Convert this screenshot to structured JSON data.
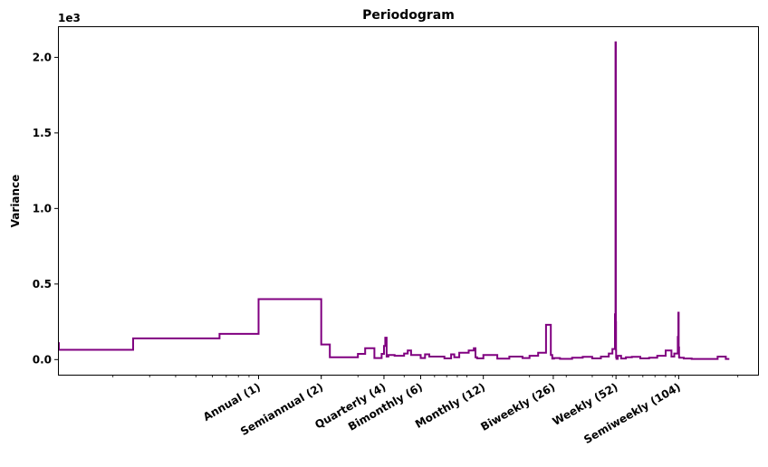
{
  "chart_data": {
    "type": "line",
    "title": "Periodogram",
    "xlabel": "",
    "ylabel": "Variance",
    "y_offset_text": "1e3",
    "x_scale": "log",
    "xlim": [
      0.11,
      250
    ],
    "ylim": [
      -0.1,
      2.2
    ],
    "y_ticks": [
      {
        "value": 0.0,
        "label": "0.0"
      },
      {
        "value": 0.5,
        "label": "0.5"
      },
      {
        "value": 1.0,
        "label": "1.0"
      },
      {
        "value": 1.5,
        "label": "1.5"
      },
      {
        "value": 2.0,
        "label": "2.0"
      }
    ],
    "x_ticks": [
      {
        "value": 1,
        "label": "Annual (1)"
      },
      {
        "value": 2,
        "label": "Semiannual (2)"
      },
      {
        "value": 4,
        "label": "Quarterly (4)"
      },
      {
        "value": 6,
        "label": "Bimonthly (6)"
      },
      {
        "value": 12,
        "label": "Monthly (12)"
      },
      {
        "value": 26,
        "label": "Biweekly (26)"
      },
      {
        "value": 52,
        "label": "Weekly (52)"
      },
      {
        "value": 104,
        "label": "Semiweekly (104)"
      }
    ],
    "grid": false,
    "legend": "none",
    "line_color": "#800080",
    "x": [
      0.11,
      0.25,
      0.65,
      1.0,
      2.0,
      2.2,
      3.0,
      3.25,
      3.6,
      3.9,
      4.0,
      4.06,
      4.12,
      4.2,
      4.5,
      5.0,
      5.2,
      5.4,
      6.0,
      6.3,
      6.6,
      7.2,
      7.8,
      8.4,
      8.7,
      9.2,
      10.2,
      10.8,
      11.0,
      11.2,
      12.0,
      14.0,
      16.0,
      18.5,
      20.0,
      22.0,
      24.0,
      25.3,
      25.7,
      26.2,
      28.0,
      32.0,
      36.0,
      40.0,
      44.0,
      48.0,
      50.0,
      51.4,
      51.7,
      51.9,
      52.0,
      52.1,
      52.3,
      53.0,
      55.0,
      58.0,
      62.0,
      68.0,
      75.0,
      82.0,
      90.0,
      96.0,
      99.0,
      103.0,
      103.6,
      104.0,
      104.4,
      105.0,
      110.0,
      120.0,
      140.0,
      160.0,
      175.0,
      182.0
    ],
    "values": [
      0.115,
      0.065,
      0.14,
      0.17,
      0.4,
      0.1,
      0.015,
      0.038,
      0.075,
      0.01,
      0.038,
      0.09,
      0.145,
      0.02,
      0.03,
      0.025,
      0.04,
      0.06,
      0.03,
      0.01,
      0.035,
      0.02,
      0.02,
      0.008,
      0.035,
      0.015,
      0.045,
      0.06,
      0.075,
      0.015,
      0.008,
      0.03,
      0.006,
      0.02,
      0.01,
      0.025,
      0.045,
      0.23,
      0.03,
      0.006,
      0.01,
      0.005,
      0.012,
      0.018,
      0.008,
      0.02,
      0.04,
      0.07,
      0.3,
      2.1,
      0.25,
      0.06,
      0.015,
      0.005,
      0.025,
      0.007,
      0.015,
      0.018,
      0.008,
      0.012,
      0.025,
      0.06,
      0.02,
      0.04,
      0.15,
      0.31,
      0.08,
      0.015,
      0.012,
      0.007,
      0.004,
      0.004,
      0.02,
      0.004
    ]
  }
}
